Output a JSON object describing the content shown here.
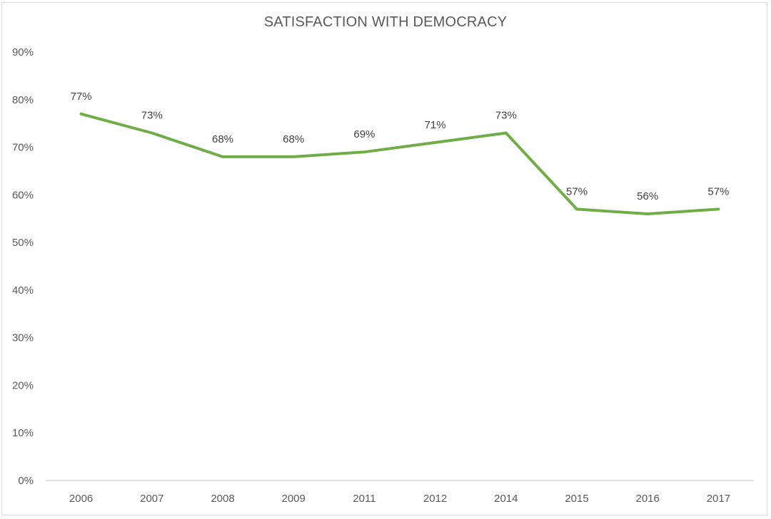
{
  "chart_data": {
    "type": "line",
    "title": "SATISFACTION WITH DEMOCRACY",
    "xlabel": "",
    "ylabel": "",
    "categories": [
      "2006",
      "2007",
      "2008",
      "2009",
      "2011",
      "2012",
      "2014",
      "2015",
      "2016",
      "2017"
    ],
    "series": [
      {
        "name": "Satisfaction with democracy",
        "values": [
          77,
          73,
          68,
          68,
          69,
          71,
          73,
          57,
          56,
          57
        ],
        "labels": [
          "77%",
          "73%",
          "68%",
          "68%",
          "69%",
          "71%",
          "73%",
          "57%",
          "56%",
          "57%"
        ],
        "color": "#70ad47"
      }
    ],
    "ylim": [
      0,
      90
    ],
    "yticks": [
      0,
      10,
      20,
      30,
      40,
      50,
      60,
      70,
      80,
      90
    ],
    "ytick_labels": [
      "0%",
      "10%",
      "20%",
      "30%",
      "40%",
      "50%",
      "60%",
      "70%",
      "80%",
      "90%"
    ],
    "grid": false,
    "legend": "none",
    "data_labels": true
  }
}
